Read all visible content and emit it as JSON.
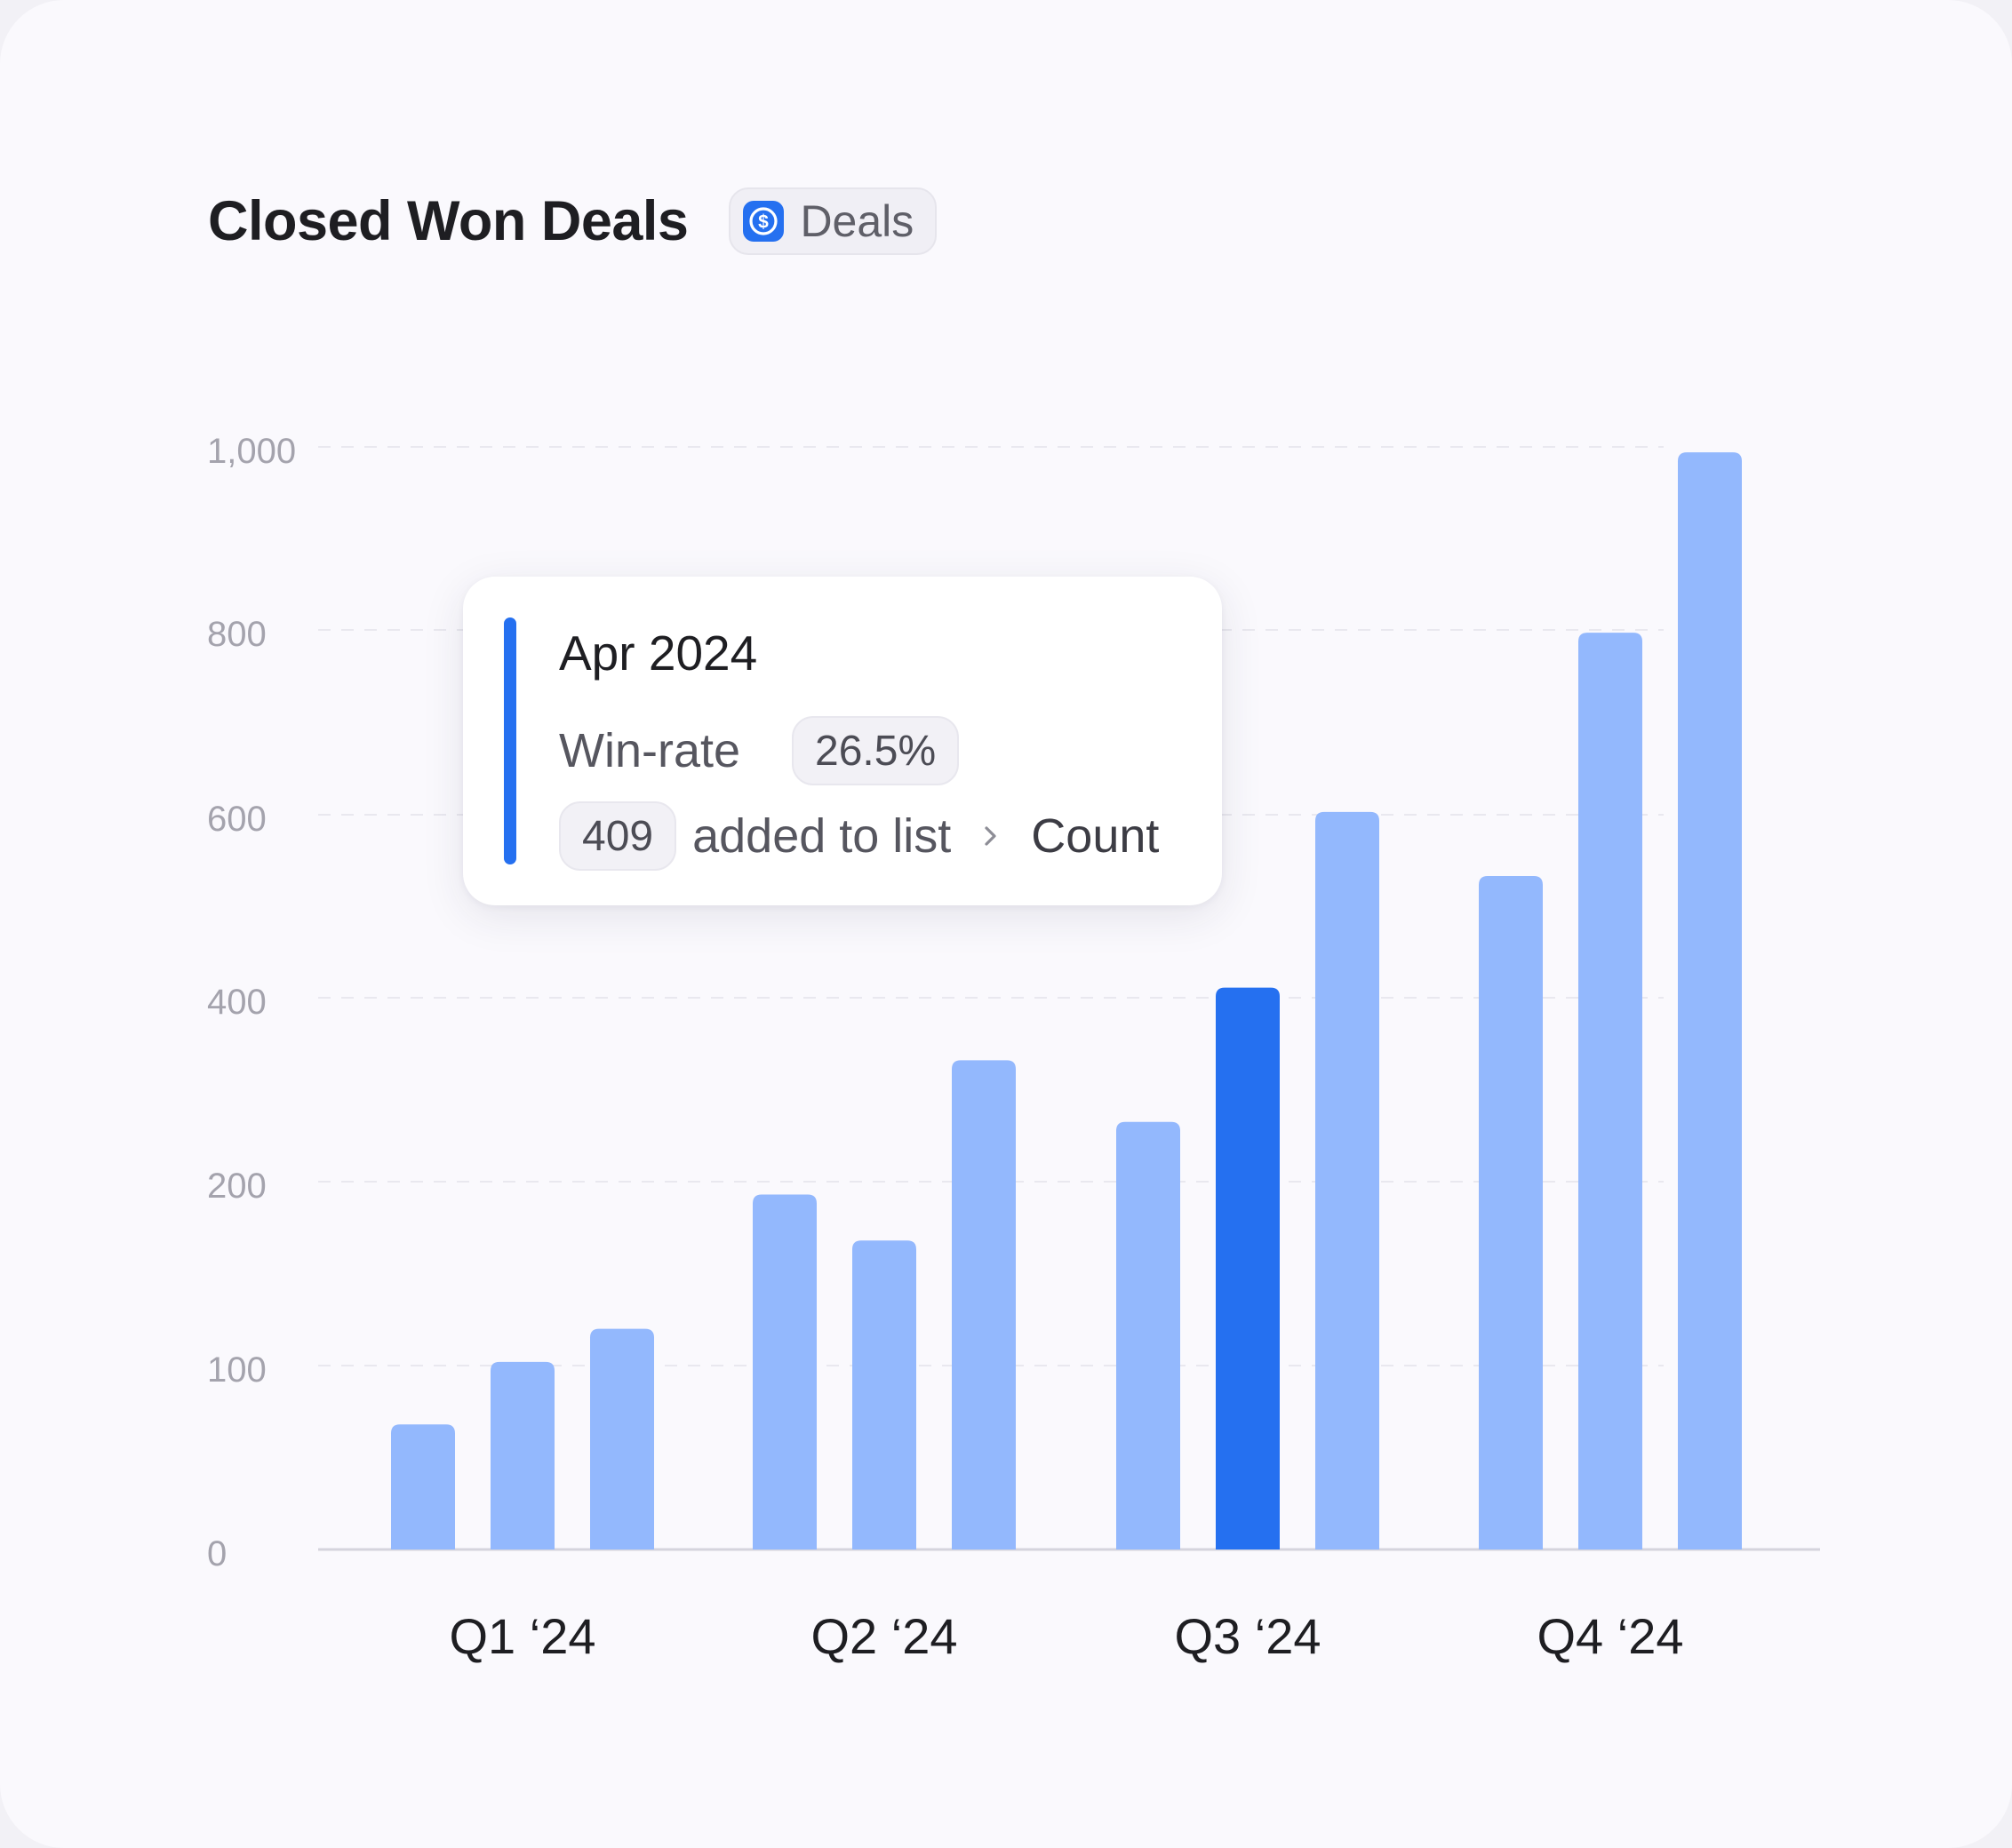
{
  "header": {
    "title": "Closed Won Deals",
    "badge_label": "Deals",
    "badge_icon": "dollar-circle-icon"
  },
  "colors": {
    "bar": "#93b8fd",
    "bar_highlight": "#2570f0",
    "accent": "#2570f0"
  },
  "tooltip": {
    "title": "Apr 2024",
    "winrate_label": "Win-rate",
    "winrate_value": "26.5%",
    "count_value": "409",
    "count_label": "added to list",
    "link_label": "Count"
  },
  "chart_data": {
    "type": "bar",
    "title": "Closed Won Deals",
    "categories": [
      "Q1 ‘24",
      "Q2 ‘24",
      "Q3 ‘24",
      "Q4 ‘24"
    ],
    "y_ticks": [
      "0",
      "100",
      "200",
      "400",
      "600",
      "800",
      "1,000"
    ],
    "groups": [
      {
        "category": "Q1 ‘24",
        "values": [
          68,
          102,
          120
        ]
      },
      {
        "category": "Q2 ‘24",
        "values": [
          193,
          168,
          332
        ]
      },
      {
        "category": "Q3 ‘24",
        "values": [
          265,
          411,
          603
        ]
      },
      {
        "category": "Q4 ‘24",
        "values": [
          533,
          797,
          994
        ]
      }
    ],
    "highlighted": {
      "group": 2,
      "bar": 1
    },
    "grid": true,
    "legend": "none"
  }
}
